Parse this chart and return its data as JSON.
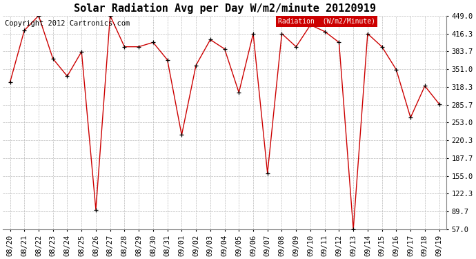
{
  "title": "Solar Radiation Avg per Day W/m2/minute 20120919",
  "copyright_text": "Copyright 2012 Cartronics.com",
  "legend_label": "Radiation  (W/m2/Minute)",
  "dates": [
    "08/20",
    "08/21",
    "08/22",
    "08/23",
    "08/24",
    "08/25",
    "08/26",
    "08/27",
    "08/28",
    "08/29",
    "08/30",
    "08/31",
    "09/01",
    "09/02",
    "09/03",
    "09/04",
    "09/05",
    "09/06",
    "09/07",
    "09/08",
    "09/09",
    "09/10",
    "09/11",
    "09/12",
    "09/13",
    "09/14",
    "09/15",
    "09/16",
    "09/17",
    "09/18",
    "09/19"
  ],
  "values": [
    327,
    422,
    449,
    370,
    338,
    383,
    93,
    449,
    392,
    392,
    400,
    368,
    230,
    358,
    405,
    388,
    308,
    416,
    160,
    416,
    392,
    432,
    420,
    400,
    57,
    416,
    392,
    350,
    262,
    320,
    287
  ],
  "line_color": "#cc0000",
  "marker_color": "#000000",
  "background_color": "#ffffff",
  "grid_color": "#bbbbbb",
  "y_ticks": [
    57.0,
    89.7,
    122.3,
    155.0,
    187.7,
    220.3,
    253.0,
    285.7,
    318.3,
    351.0,
    383.7,
    416.3,
    449.0
  ],
  "ylim": [
    57.0,
    449.0
  ],
  "legend_bg": "#cc0000",
  "legend_text_color": "#ffffff",
  "title_fontsize": 11,
  "tick_fontsize": 7.5,
  "copyright_fontsize": 7.5
}
